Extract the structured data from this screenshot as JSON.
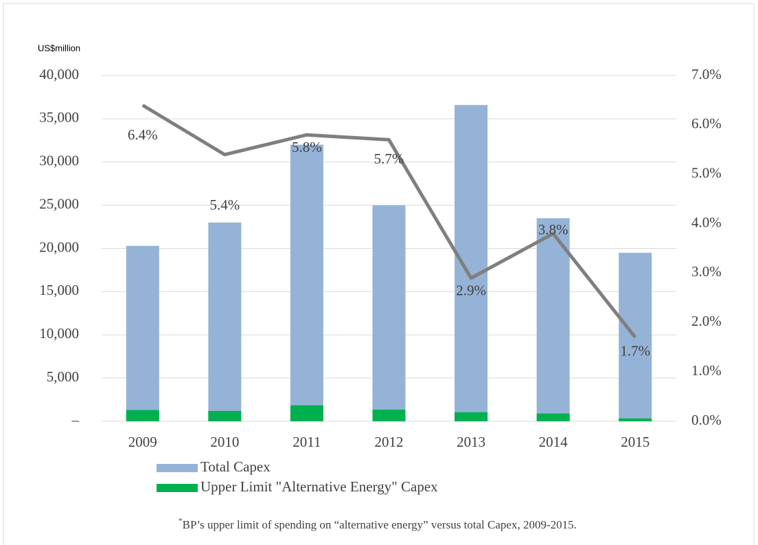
{
  "chart_data": {
    "type": "bar",
    "y_label": "US$million",
    "categories": [
      "2009",
      "2010",
      "2011",
      "2012",
      "2013",
      "2014",
      "2015"
    ],
    "series": [
      {
        "name": "Total Capex",
        "type": "bar",
        "color": "#95b3d7",
        "values": [
          20300,
          23000,
          32000,
          25000,
          36600,
          23500,
          19500
        ]
      },
      {
        "name": "Upper Limit \"Alternative Energy\" Capex",
        "type": "bar",
        "color": "#00b050",
        "values": [
          1300,
          1200,
          1850,
          1350,
          1050,
          900,
          330
        ]
      },
      {
        "type": "line",
        "axis": "y2",
        "color": "#7f7f7f",
        "values": [
          6.4,
          5.4,
          5.8,
          5.7,
          2.9,
          3.8,
          1.7
        ],
        "value_labels": [
          "6.4%",
          "5.4%",
          "5.8%",
          "5.7%",
          "2.9%",
          "3.8%",
          "1.7%"
        ]
      }
    ],
    "ylim": [
      0,
      40000
    ],
    "yticks": [
      {
        "value": 0,
        "label": "–"
      },
      {
        "value": 5000,
        "label": "5,000"
      },
      {
        "value": 10000,
        "label": "10,000"
      },
      {
        "value": 15000,
        "label": "15,000"
      },
      {
        "value": 20000,
        "label": "20,000"
      },
      {
        "value": 25000,
        "label": "25,000"
      },
      {
        "value": 30000,
        "label": "30,000"
      },
      {
        "value": 35000,
        "label": "35,000"
      },
      {
        "value": 40000,
        "label": "40,000"
      }
    ],
    "y2lim": [
      0,
      7
    ],
    "y2ticks": [
      {
        "value": 0,
        "label": "0.0%"
      },
      {
        "value": 1,
        "label": "1.0%"
      },
      {
        "value": 2,
        "label": "2.0%"
      },
      {
        "value": 3,
        "label": "3.0%"
      },
      {
        "value": 4,
        "label": "4.0%"
      },
      {
        "value": 5,
        "label": "5.0%"
      },
      {
        "value": 6,
        "label": "6.0%"
      },
      {
        "value": 7,
        "label": "7.0%"
      }
    ],
    "grid": true,
    "legend": "bottom-left",
    "note_mark": "*",
    "note": "BP’s upper limit of spending on “alternative energy” versus total Capex, 2009-2015."
  }
}
